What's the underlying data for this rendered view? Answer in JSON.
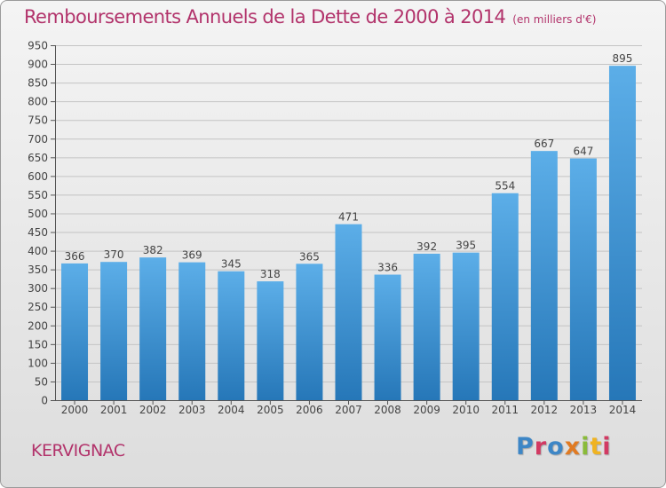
{
  "header": {
    "title": "Remboursements Annuels de la Dette de 2000 à 2014",
    "subtitle": "(en milliers d'€)"
  },
  "footer": {
    "commune": "KERVIGNAC",
    "logo_text": "Proxiti"
  },
  "colors": {
    "title": "#b2336b",
    "bar_light": "#5caee8",
    "bar_dark": "#2677b8",
    "logo": [
      "#3d86c6",
      "#e07a22",
      "#8abb3a",
      "#d23a63",
      "#f0b321"
    ]
  },
  "chart_data": {
    "type": "bar",
    "title": "Remboursements Annuels de la Dette de 2000 à 2014",
    "xlabel": "",
    "ylabel": "",
    "categories": [
      "2000",
      "2001",
      "2002",
      "2003",
      "2004",
      "2005",
      "2006",
      "2007",
      "2008",
      "2009",
      "2010",
      "2011",
      "2012",
      "2013",
      "2014"
    ],
    "values": [
      366,
      370,
      382,
      369,
      345,
      318,
      365,
      471,
      336,
      392,
      395,
      554,
      667,
      647,
      895
    ],
    "ylim": [
      0,
      950
    ],
    "yticks": [
      0,
      50,
      100,
      150,
      200,
      250,
      300,
      350,
      400,
      450,
      500,
      550,
      600,
      650,
      700,
      750,
      800,
      850,
      900,
      950
    ],
    "grid": true,
    "data_labels": true,
    "legend": "none"
  }
}
